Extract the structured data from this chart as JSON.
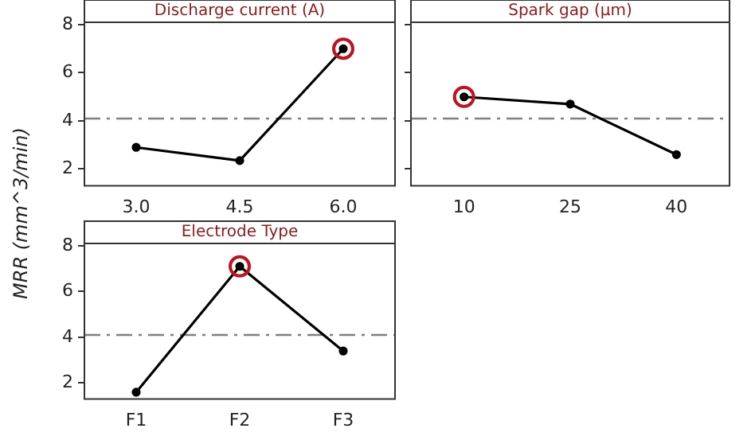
{
  "chart_data": [
    {
      "type": "line",
      "title": "Discharge current (A)",
      "ylabel": "MRR (mm^3/min)",
      "categories": [
        "3.0",
        "4.5",
        "6.0"
      ],
      "ylim": [
        1.3,
        8.1
      ],
      "yticks": [
        2,
        4,
        6,
        8
      ],
      "grid": false,
      "legend": false,
      "line_style": "solid",
      "series": [
        {
          "color": "#000000",
          "marker": "circle",
          "values": [
            2.9,
            2.35,
            7.0
          ]
        },
        {
          "type": "scatter",
          "color": "#c0121f",
          "marker": "circle",
          "values": [
            null,
            null,
            7.0
          ]
        }
      ],
      "ref_lines": [
        {
          "axis": "y",
          "value": 4.1,
          "color": "#808080",
          "line_style": "dashdot"
        }
      ]
    },
    {
      "type": "line",
      "title": "Spark gap (µm)",
      "categories": [
        "10",
        "25",
        "40"
      ],
      "ylim": [
        1.3,
        8.1
      ],
      "yticks": [
        2,
        4,
        6,
        8
      ],
      "tick_labels": "x",
      "grid": false,
      "legend": false,
      "line_style": "solid",
      "series": [
        {
          "color": "#000000",
          "marker": "circle",
          "values": [
            5.0,
            4.7,
            2.6
          ]
        },
        {
          "type": "scatter",
          "color": "#c0121f",
          "marker": "circle",
          "values": [
            5.0,
            null,
            null
          ]
        }
      ],
      "ref_lines": [
        {
          "axis": "y",
          "value": 4.1,
          "color": "#808080",
          "line_style": "dashdot"
        }
      ]
    },
    {
      "type": "line",
      "title": "Electrode Type",
      "categories": [
        "F1",
        "F2",
        "F3"
      ],
      "ylim": [
        1.3,
        8.1
      ],
      "yticks": [
        2,
        4,
        6,
        8
      ],
      "grid": false,
      "legend": false,
      "line_style": "solid",
      "series": [
        {
          "color": "#000000",
          "marker": "circle",
          "values": [
            1.6,
            7.1,
            3.4
          ]
        },
        {
          "type": "scatter",
          "color": "#c0121f",
          "marker": "circle",
          "values": [
            null,
            7.1,
            null
          ]
        }
      ],
      "ref_lines": [
        {
          "axis": "y",
          "value": 4.1,
          "color": "#808080",
          "line_style": "dashdot"
        }
      ]
    }
  ]
}
